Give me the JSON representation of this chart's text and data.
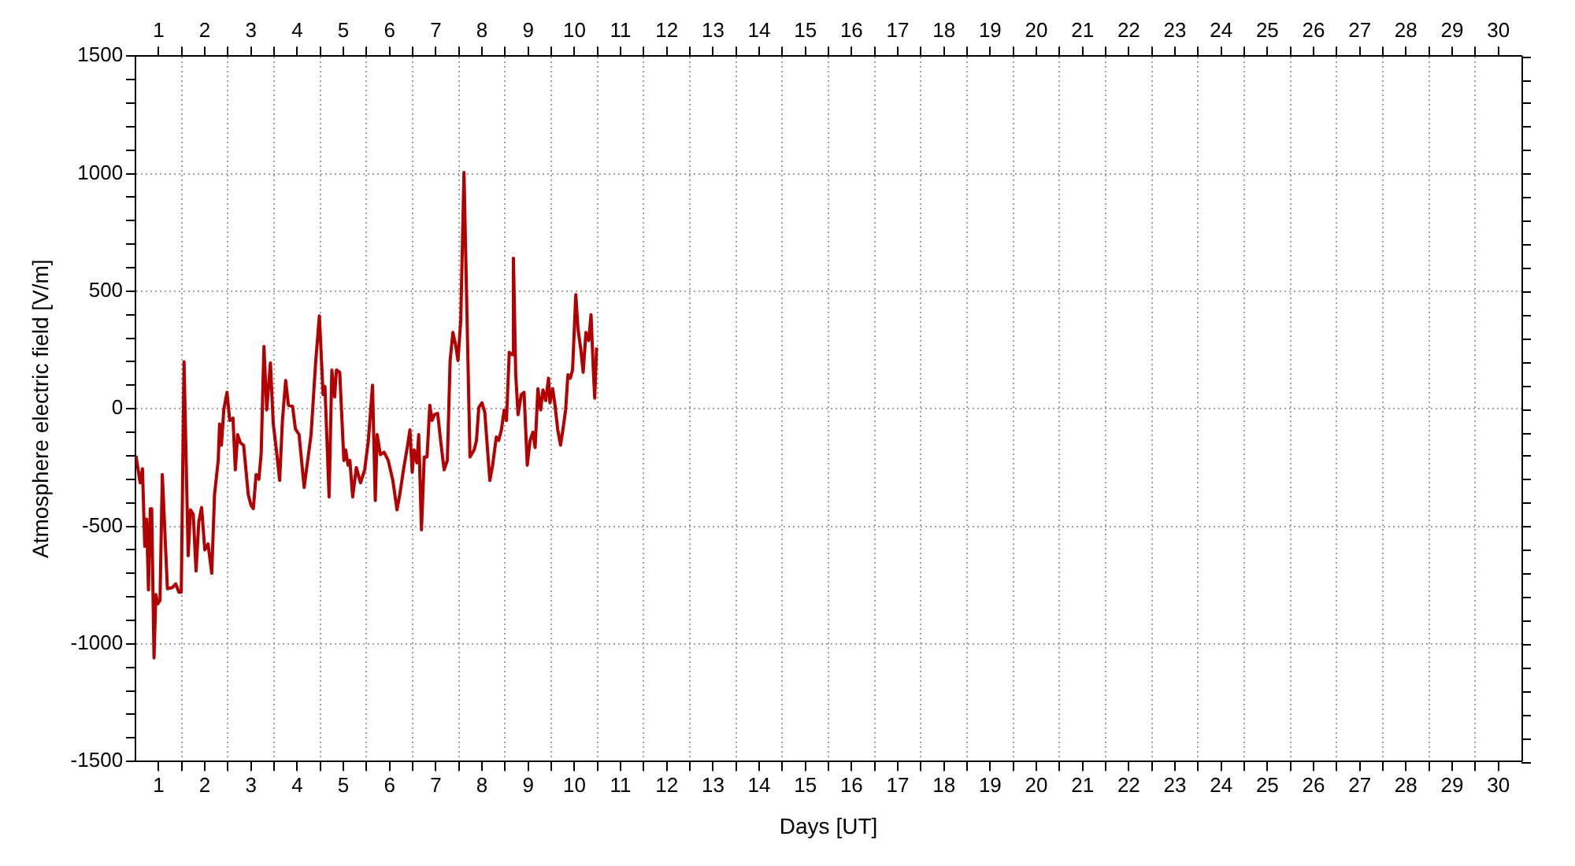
{
  "chart_data": {
    "type": "line",
    "xlabel": "Days [UT]",
    "ylabel": "Atmosphere electric field [V/m]",
    "grid": true,
    "marker": "none",
    "line_style": "solid",
    "xlim": [
      0.5,
      30.5
    ],
    "ylim": [
      -1500,
      1500
    ],
    "x2lim": [
      0.5,
      30.5
    ],
    "xticks": [
      1,
      {
        "value": 1.5,
        "label": null
      },
      2,
      {
        "value": 2.5,
        "label": null
      },
      3,
      {
        "value": 3.5,
        "label": null
      },
      4,
      {
        "value": 4.5,
        "label": null
      },
      5,
      {
        "value": 5.5,
        "label": null
      },
      6,
      {
        "value": 6.5,
        "label": null
      },
      7,
      {
        "value": 7.5,
        "label": null
      },
      8,
      {
        "value": 8.5,
        "label": null
      },
      9,
      {
        "value": 9.5,
        "label": null
      },
      10,
      {
        "value": 10.5,
        "label": null
      },
      11,
      {
        "value": 11.5,
        "label": null
      },
      12,
      {
        "value": 12.5,
        "label": null
      },
      13,
      {
        "value": 13.5,
        "label": null
      },
      14,
      {
        "value": 14.5,
        "label": null
      },
      15,
      {
        "value": 15.5,
        "label": null
      },
      16,
      {
        "value": 16.5,
        "label": null
      },
      17,
      {
        "value": 17.5,
        "label": null
      },
      18,
      {
        "value": 18.5,
        "label": null
      },
      19,
      {
        "value": 19.5,
        "label": null
      },
      20,
      {
        "value": 20.5,
        "label": null
      },
      21,
      {
        "value": 21.5,
        "label": null
      },
      22,
      {
        "value": 22.5,
        "label": null
      },
      23,
      {
        "value": 23.5,
        "label": null
      },
      24,
      {
        "value": 24.5,
        "label": null
      },
      25,
      {
        "value": 25.5,
        "label": null
      },
      26,
      {
        "value": 26.5,
        "label": null
      },
      27,
      {
        "value": 27.5,
        "label": null
      },
      28,
      {
        "value": 28.5,
        "label": null
      },
      29,
      {
        "value": 29.5,
        "label": null
      },
      30
    ],
    "x2ticks": [
      1,
      {
        "value": 1.5,
        "label": null
      },
      2,
      {
        "value": 2.5,
        "label": null
      },
      3,
      {
        "value": 3.5,
        "label": null
      },
      4,
      {
        "value": 4.5,
        "label": null
      },
      5,
      {
        "value": 5.5,
        "label": null
      },
      6,
      {
        "value": 6.5,
        "label": null
      },
      7,
      {
        "value": 7.5,
        "label": null
      },
      8,
      {
        "value": 8.5,
        "label": null
      },
      9,
      {
        "value": 9.5,
        "label": null
      },
      10,
      {
        "value": 10.5,
        "label": null
      },
      11,
      {
        "value": 11.5,
        "label": null
      },
      12,
      {
        "value": 12.5,
        "label": null
      },
      13,
      {
        "value": 13.5,
        "label": null
      },
      14,
      {
        "value": 14.5,
        "label": null
      },
      15,
      {
        "value": 15.5,
        "label": null
      },
      16,
      {
        "value": 16.5,
        "label": null
      },
      17,
      {
        "value": 17.5,
        "label": null
      },
      18,
      {
        "value": 18.5,
        "label": null
      },
      19,
      {
        "value": 19.5,
        "label": null
      },
      20,
      {
        "value": 20.5,
        "label": null
      },
      21,
      {
        "value": 21.5,
        "label": null
      },
      22,
      {
        "value": 22.5,
        "label": null
      },
      23,
      {
        "value": 23.5,
        "label": null
      },
      24,
      {
        "value": 24.5,
        "label": null
      },
      25,
      {
        "value": 25.5,
        "label": null
      },
      26,
      {
        "value": 26.5,
        "label": null
      },
      27,
      {
        "value": 27.5,
        "label": null
      },
      28,
      {
        "value": 28.5,
        "label": null
      },
      29,
      {
        "value": 29.5,
        "label": null
      },
      30
    ],
    "yticks": [
      -1500,
      {
        "value": -1400,
        "label": null
      },
      {
        "value": -1300,
        "label": null
      },
      {
        "value": -1200,
        "label": null
      },
      {
        "value": -1100,
        "label": null
      },
      -1000,
      {
        "value": -900,
        "label": null
      },
      {
        "value": -800,
        "label": null
      },
      {
        "value": -700,
        "label": null
      },
      {
        "value": -600,
        "label": null
      },
      -500,
      {
        "value": -400,
        "label": null
      },
      {
        "value": -300,
        "label": null
      },
      {
        "value": -200,
        "label": null
      },
      {
        "value": -100,
        "label": null
      },
      0,
      {
        "value": 100,
        "label": null
      },
      {
        "value": 200,
        "label": null
      },
      {
        "value": 300,
        "label": null
      },
      {
        "value": 400,
        "label": null
      },
      500,
      {
        "value": 600,
        "label": null
      },
      {
        "value": 700,
        "label": null
      },
      {
        "value": 800,
        "label": null
      },
      {
        "value": 900,
        "label": null
      },
      1000,
      {
        "value": 1100,
        "label": null
      },
      {
        "value": 1200,
        "label": null
      },
      {
        "value": 1300,
        "label": null
      },
      {
        "value": 1400,
        "label": null
      },
      1500
    ],
    "series": [
      {
        "color": "#b30000",
        "x": [
          0.51,
          0.6,
          0.65,
          0.7,
          0.74,
          0.78,
          0.82,
          0.85,
          0.9,
          0.94,
          0.98,
          1.03,
          1.08,
          1.19,
          1.3,
          1.37,
          1.44,
          1.49,
          1.55,
          1.64,
          1.69,
          1.75,
          1.81,
          1.87,
          1.93,
          2.0,
          2.07,
          2.15,
          2.21,
          2.29,
          2.32,
          2.36,
          2.41,
          2.48,
          2.54,
          2.61,
          2.66,
          2.71,
          2.77,
          2.84,
          2.94,
          3.0,
          3.05,
          3.11,
          3.17,
          3.22,
          3.28,
          3.34,
          3.42,
          3.48,
          3.56,
          3.62,
          3.68,
          3.75,
          3.81,
          3.9,
          3.96,
          4.04,
          4.15,
          4.3,
          4.4,
          4.48,
          4.56,
          4.6,
          4.69,
          4.75,
          4.81,
          4.85,
          4.92,
          5.01,
          5.05,
          5.1,
          5.14,
          5.2,
          5.28,
          5.37,
          5.46,
          5.54,
          5.63,
          5.69,
          5.73,
          5.8,
          5.88,
          5.97,
          6.07,
          6.16,
          6.22,
          6.3,
          6.39,
          6.44,
          6.49,
          6.53,
          6.59,
          6.63,
          6.69,
          6.75,
          6.81,
          6.87,
          6.92,
          6.97,
          7.04,
          7.11,
          7.18,
          7.25,
          7.31,
          7.37,
          7.43,
          7.48,
          7.54,
          7.61,
          7.74,
          7.83,
          7.88,
          7.93,
          8.0,
          8.06,
          8.12,
          8.17,
          8.23,
          8.31,
          8.36,
          8.42,
          8.48,
          8.53,
          8.59,
          8.65,
          8.68,
          8.73,
          8.78,
          8.85,
          8.91,
          8.98,
          9.04,
          9.1,
          9.15,
          9.21,
          9.27,
          9.32,
          9.38,
          9.44,
          9.47,
          9.53,
          9.58,
          9.64,
          9.7,
          9.75,
          9.81,
          9.86,
          9.91,
          9.96,
          10.03,
          10.08,
          10.14,
          10.19,
          10.25,
          10.31,
          10.36,
          10.41,
          10.44,
          10.48
        ],
        "values": [
          -200,
          -315,
          -255,
          -585,
          -470,
          -770,
          -425,
          -425,
          -1060,
          -790,
          -830,
          -815,
          -280,
          -765,
          -760,
          -745,
          -780,
          -780,
          200,
          -625,
          -430,
          -450,
          -690,
          -480,
          -420,
          -600,
          -575,
          -700,
          -365,
          -220,
          -65,
          -155,
          -5,
          70,
          -50,
          -40,
          -260,
          -110,
          -145,
          -155,
          -365,
          -410,
          -425,
          -280,
          -300,
          -190,
          265,
          -5,
          195,
          -60,
          -195,
          -305,
          -50,
          120,
          15,
          10,
          -85,
          -110,
          -335,
          -110,
          200,
          395,
          60,
          95,
          -375,
          165,
          50,
          165,
          155,
          -220,
          -175,
          -240,
          -220,
          -375,
          -250,
          -315,
          -260,
          -135,
          100,
          -390,
          -110,
          -195,
          -185,
          -220,
          -305,
          -430,
          -365,
          -260,
          -155,
          -90,
          -270,
          -175,
          -230,
          -110,
          -515,
          -205,
          -205,
          15,
          -50,
          -25,
          -20,
          -145,
          -260,
          -220,
          205,
          325,
          270,
          205,
          375,
          1005,
          -205,
          -175,
          -135,
          5,
          25,
          -15,
          -175,
          -305,
          -240,
          -120,
          -135,
          -90,
          -5,
          -50,
          240,
          230,
          640,
          145,
          -25,
          60,
          70,
          -240,
          -135,
          -100,
          -165,
          85,
          -5,
          80,
          35,
          130,
          25,
          85,
          15,
          -90,
          -155,
          -90,
          -5,
          145,
          130,
          165,
          485,
          335,
          250,
          155,
          325,
          290,
          400,
          165,
          45,
          260
        ]
      }
    ]
  }
}
